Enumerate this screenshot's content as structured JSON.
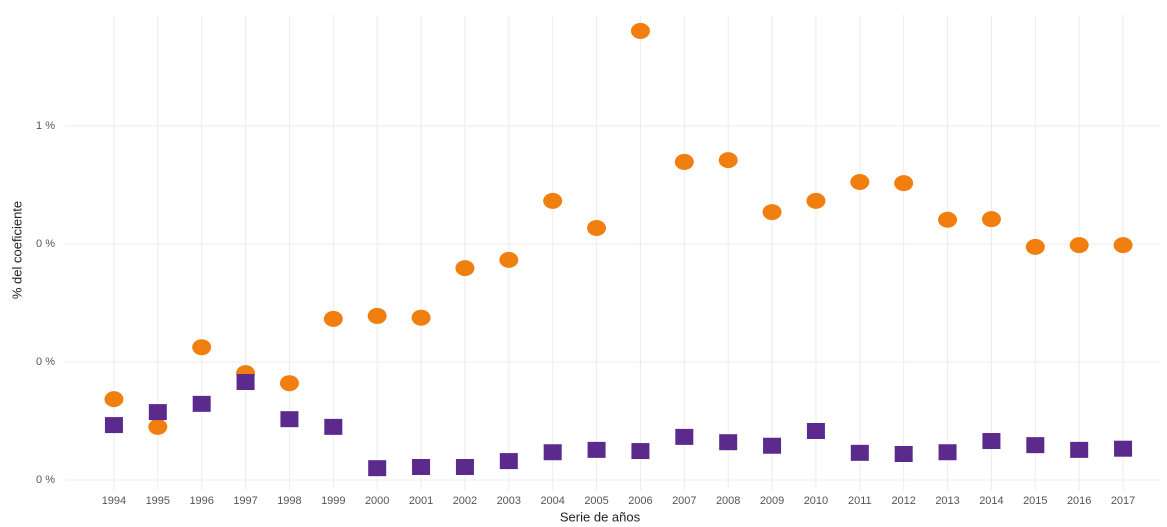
{
  "chart_data": {
    "type": "scatter",
    "x_label": "Serie de años",
    "y_label": "% del coeficiente",
    "categories": [
      "1994",
      "1995",
      "1996",
      "1997",
      "1998",
      "1999",
      "2000",
      "2001",
      "2002",
      "2003",
      "2004",
      "2005",
      "2006",
      "2007",
      "2008",
      "2009",
      "2010",
      "2011",
      "2012",
      "2013",
      "2014",
      "2015",
      "2016",
      "2017"
    ],
    "series": [
      {
        "color": "#f07f0f",
        "marker": "circle",
        "values": [
          0.137,
          0.09,
          0.225,
          0.181,
          0.164,
          0.273,
          0.278,
          0.275,
          0.359,
          0.373,
          0.473,
          0.427,
          0.761,
          0.539,
          0.542,
          0.454,
          0.473,
          0.505,
          0.503,
          0.441,
          0.442,
          0.395,
          0.398,
          0.398
        ]
      },
      {
        "color": "#5b2a8c",
        "marker": "square",
        "values": [
          0.093,
          0.115,
          0.129,
          0.166,
          0.103,
          0.09,
          0.02,
          0.022,
          0.022,
          0.032,
          0.047,
          0.051,
          0.049,
          0.073,
          0.064,
          0.058,
          0.083,
          0.046,
          0.044,
          0.047,
          0.066,
          0.059,
          0.051,
          0.053
        ]
      }
    ],
    "ylim": [
      -0.017,
      0.788
    ],
    "yticks": [
      {
        "value": 0,
        "label": "0 %"
      },
      {
        "value": 0.2,
        "label": "0 %"
      },
      {
        "value": 0.4,
        "label": "0 %"
      },
      {
        "value": 0.6,
        "label": "1 %"
      }
    ],
    "grid": true
  }
}
